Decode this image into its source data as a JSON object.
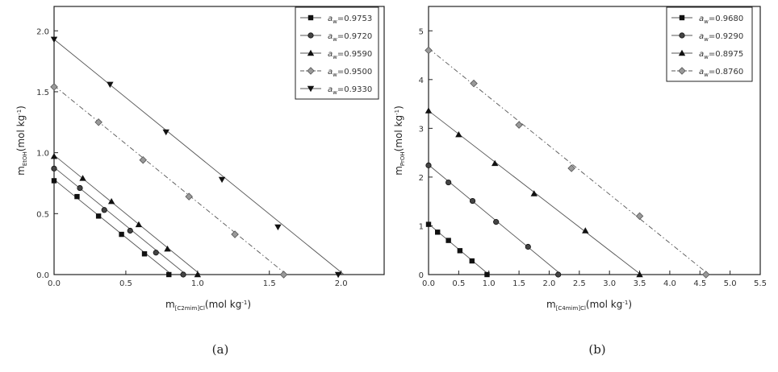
{
  "chart_data": [
    {
      "type": "scatter",
      "caption": "(a)",
      "ylabel": {
        "pre": "m",
        "sub": "EtOH",
        "post": "(mol kg",
        "sup": "-1",
        "end": ")"
      },
      "xlabel": {
        "pre": "m",
        "sub": "[C2mim]Cl",
        "post": "(mol kg",
        "sup": "-1",
        "end": ")"
      },
      "xlim": [
        0,
        2.3
      ],
      "ylim": [
        0,
        2.2
      ],
      "xticks": [
        "0.0",
        "0.5",
        "1.0",
        "1.5",
        "2.0"
      ],
      "xtick_values": [
        0,
        0.5,
        1.0,
        1.5,
        2.0
      ],
      "yticks": [
        "0.0",
        "0.5",
        "1.0",
        "1.5",
        "2.0"
      ],
      "ytick_values": [
        0,
        0.5,
        1.0,
        1.5,
        2.0
      ],
      "legend_position": "top-right",
      "series": [
        {
          "name": "0.9753",
          "marker": "square",
          "line": [
            [
              0,
              0.78
            ],
            [
              0.82,
              0
            ]
          ],
          "x": [
            0,
            0.16,
            0.31,
            0.47,
            0.63,
            0.8
          ],
          "y": [
            0.77,
            0.64,
            0.48,
            0.33,
            0.17,
            0.0
          ]
        },
        {
          "name": "0.9720",
          "marker": "circle",
          "line": [
            [
              0,
              0.88
            ],
            [
              0.92,
              0
            ]
          ],
          "x": [
            0,
            0.18,
            0.35,
            0.53,
            0.71,
            0.9
          ],
          "y": [
            0.87,
            0.71,
            0.53,
            0.36,
            0.18,
            0.0
          ]
        },
        {
          "name": "0.9590",
          "marker": "triangle-up",
          "line": [
            [
              0,
              0.98
            ],
            [
              1.02,
              0
            ]
          ],
          "x": [
            0,
            0.2,
            0.4,
            0.59,
            0.79,
            1.0
          ],
          "y": [
            0.97,
            0.79,
            0.6,
            0.41,
            0.21,
            0.0
          ]
        },
        {
          "name": "0.9500",
          "marker": "diamond",
          "line": [
            [
              0,
              1.55
            ],
            [
              1.62,
              0
            ]
          ],
          "x": [
            0,
            0.31,
            0.62,
            0.94,
            1.26,
            1.6
          ],
          "y": [
            1.54,
            1.25,
            0.94,
            0.64,
            0.33,
            0.0
          ]
        },
        {
          "name": "0.9330",
          "marker": "triangle-down",
          "line": [
            [
              0,
              1.93
            ],
            [
              2.02,
              0
            ]
          ],
          "x": [
            0,
            0.39,
            0.78,
            1.17,
            1.56,
            1.98
          ],
          "y": [
            1.93,
            1.56,
            1.17,
            0.78,
            0.39,
            0.0
          ]
        }
      ]
    },
    {
      "type": "scatter",
      "caption": "(b)",
      "ylabel": {
        "pre": "m",
        "sub": "PrOH",
        "post": "(mol kg",
        "sup": "-1",
        "end": ")"
      },
      "xlabel": {
        "pre": "m",
        "sub": "[C4mim]Cl",
        "post": "(mol kg",
        "sup": "-1",
        "end": ")"
      },
      "xlim": [
        0,
        5.5
      ],
      "ylim": [
        0,
        5.5
      ],
      "xticks": [
        "0.0",
        "0.5",
        "1.0",
        "1.5",
        "2.0",
        "2.5",
        "3.0",
        "3.5",
        "4.0",
        "4.5",
        "5.0",
        "5.5"
      ],
      "xtick_values": [
        0,
        0.5,
        1.0,
        1.5,
        2.0,
        2.5,
        3.0,
        3.5,
        4.0,
        4.5,
        5.0,
        5.5
      ],
      "yticks": [
        "0",
        "1",
        "2",
        "3",
        "4",
        "5"
      ],
      "ytick_values": [
        0,
        1,
        2,
        3,
        4,
        5
      ],
      "legend_position": "top-right",
      "series": [
        {
          "name": "0.9680",
          "marker": "square",
          "line": [
            [
              0,
              1.04
            ],
            [
              1.0,
              0
            ]
          ],
          "x": [
            0,
            0.15,
            0.33,
            0.52,
            0.72,
            0.97
          ],
          "y": [
            1.03,
            0.87,
            0.7,
            0.49,
            0.28,
            0.0
          ]
        },
        {
          "name": "0.9290",
          "marker": "circle",
          "line": [
            [
              0,
              2.25
            ],
            [
              2.2,
              0
            ]
          ],
          "x": [
            0,
            0.33,
            0.73,
            1.12,
            1.65,
            2.15
          ],
          "y": [
            2.24,
            1.89,
            1.51,
            1.08,
            0.57,
            0.0
          ]
        },
        {
          "name": "0.8975",
          "marker": "triangle-up",
          "line": [
            [
              0,
              3.36
            ],
            [
              3.52,
              0
            ]
          ],
          "x": [
            0,
            0.5,
            1.1,
            1.75,
            2.6,
            3.5
          ],
          "y": [
            3.36,
            2.87,
            2.28,
            1.66,
            0.9,
            0.0
          ]
        },
        {
          "name": "0.8760",
          "marker": "diamond",
          "line": [
            [
              0,
              4.64
            ],
            [
              4.65,
              0
            ]
          ],
          "x": [
            0,
            0.75,
            1.5,
            2.37,
            3.5,
            4.6
          ],
          "y": [
            4.6,
            3.92,
            3.07,
            2.18,
            1.2,
            0.0
          ]
        }
      ]
    }
  ]
}
